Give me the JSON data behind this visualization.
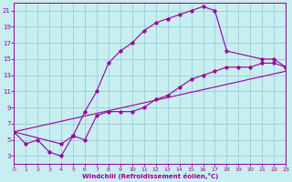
{
  "xlabel": "Windchill (Refroidissement éolien,°C)",
  "bg_color": "#c8eef0",
  "line_color": "#990099",
  "grid_color": "#99ccdd",
  "xlim": [
    0,
    23
  ],
  "ylim": [
    2,
    22
  ],
  "xticks": [
    0,
    1,
    2,
    3,
    4,
    5,
    6,
    7,
    8,
    9,
    10,
    11,
    12,
    13,
    14,
    15,
    16,
    17,
    18,
    19,
    20,
    21,
    22,
    23
  ],
  "yticks": [
    3,
    5,
    7,
    9,
    11,
    13,
    15,
    17,
    19,
    21
  ],
  "curve1_x": [
    0,
    1,
    2,
    3,
    4,
    5,
    6,
    7,
    8,
    9,
    10,
    11,
    12,
    13,
    14,
    15,
    16,
    17,
    18,
    21,
    22,
    23
  ],
  "curve1_y": [
    6,
    4.5,
    5,
    3.5,
    3,
    5.5,
    8.5,
    11,
    14.5,
    16,
    17,
    18.5,
    19.5,
    20,
    20.5,
    21,
    21.5,
    21,
    16,
    15,
    15,
    14
  ],
  "curve2_x": [
    0,
    4,
    5,
    6,
    7,
    8,
    9,
    10,
    11,
    12,
    13,
    14,
    15,
    16,
    17,
    18,
    19,
    20,
    21,
    22,
    23
  ],
  "curve2_y": [
    6,
    4.5,
    5.5,
    5,
    8,
    8.5,
    8.5,
    8.5,
    9,
    10,
    10.5,
    11.5,
    12.5,
    13,
    13.5,
    14,
    14,
    14,
    14.5,
    14.5,
    14
  ],
  "curve3_x": [
    0,
    23
  ],
  "curve3_y": [
    6,
    13.5
  ]
}
